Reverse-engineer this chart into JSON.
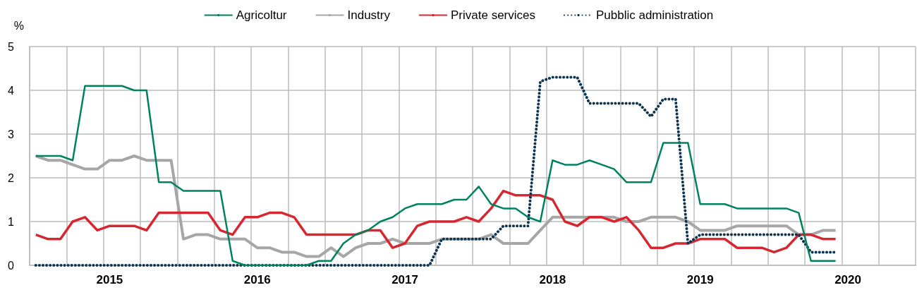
{
  "chart_data": {
    "type": "line",
    "ylabel": "%",
    "categories": [
      null,
      null,
      null,
      null,
      null,
      null,
      "2015",
      null,
      null,
      null,
      null,
      null,
      null,
      null,
      null,
      null,
      null,
      null,
      "2016",
      null,
      null,
      null,
      null,
      null,
      null,
      null,
      null,
      null,
      null,
      null,
      "2017",
      null,
      null,
      null,
      null,
      null,
      null,
      null,
      null,
      null,
      null,
      null,
      "2018",
      null,
      null,
      null,
      null,
      null,
      null,
      null,
      null,
      null,
      null,
      null,
      "2019",
      null,
      null,
      null,
      null,
      null,
      null,
      null,
      null,
      null,
      null,
      null,
      "2020",
      null,
      null,
      null,
      null,
      null
    ],
    "series": [
      {
        "name": "Agricoltur",
        "color": "#00825f",
        "line_style": "solid",
        "values": [
          2.5,
          2.5,
          2.5,
          2.4,
          4.1,
          4.1,
          4.1,
          4.1,
          4.0,
          4.0,
          1.9,
          1.9,
          1.7,
          1.7,
          1.7,
          1.7,
          0.1,
          0,
          0,
          0,
          0,
          0,
          0,
          0.1,
          0.1,
          0.5,
          0.7,
          0.8,
          1.0,
          1.1,
          1.3,
          1.4,
          1.4,
          1.4,
          1.5,
          1.5,
          1.8,
          1.4,
          1.3,
          1.3,
          1.1,
          1.0,
          2.4,
          2.3,
          2.3,
          2.4,
          2.3,
          2.2,
          1.9,
          1.9,
          1.9,
          2.8,
          2.8,
          2.8,
          1.4,
          1.4,
          1.4,
          1.3,
          1.3,
          1.3,
          1.3,
          1.3,
          1.2,
          0.1,
          0.1,
          0.1,
          null,
          null,
          null,
          null,
          null,
          null
        ]
      },
      {
        "name": "Industry",
        "color": "#a6a6a6",
        "line_style": "solid",
        "values": [
          2.5,
          2.4,
          2.4,
          2.3,
          2.2,
          2.2,
          2.4,
          2.4,
          2.5,
          2.4,
          2.4,
          2.4,
          0.6,
          0.7,
          0.7,
          0.6,
          0.6,
          0.6,
          0.4,
          0.4,
          0.3,
          0.3,
          0.2,
          0.2,
          0.4,
          0.2,
          0.4,
          0.5,
          0.5,
          0.6,
          0.5,
          0.5,
          0.5,
          0.6,
          0.6,
          0.6,
          0.6,
          0.7,
          0.5,
          0.5,
          0.5,
          0.8,
          1.1,
          1.1,
          1.1,
          1.1,
          1.1,
          1.1,
          1.0,
          1.0,
          1.1,
          1.1,
          1.1,
          1.0,
          0.8,
          0.8,
          0.8,
          0.9,
          0.9,
          0.9,
          0.9,
          0.9,
          0.7,
          0.7,
          0.8,
          0.8,
          null,
          null,
          null,
          null,
          null,
          null
        ]
      },
      {
        "name": "Private services",
        "color": "#d7262f",
        "line_style": "solid",
        "values": [
          0.7,
          0.6,
          0.6,
          1.0,
          1.1,
          0.8,
          0.9,
          0.9,
          0.9,
          0.8,
          1.2,
          1.2,
          1.2,
          1.2,
          1.2,
          0.8,
          0.7,
          1.1,
          1.1,
          1.2,
          1.2,
          1.1,
          0.7,
          0.7,
          0.7,
          0.7,
          0.7,
          0.8,
          0.8,
          0.4,
          0.5,
          0.9,
          1.0,
          1.0,
          1.0,
          1.1,
          1.0,
          1.3,
          1.7,
          1.6,
          1.6,
          1.6,
          1.5,
          1.0,
          0.9,
          1.1,
          1.1,
          1.0,
          1.1,
          0.8,
          0.4,
          0.4,
          0.5,
          0.5,
          0.6,
          0.6,
          0.6,
          0.4,
          0.4,
          0.4,
          0.3,
          0.4,
          0.7,
          0.7,
          0.6,
          0.6,
          null,
          null,
          null,
          null,
          null,
          null
        ]
      },
      {
        "name": "Pubblic administration",
        "color": "#0b3552",
        "line_style": "dotted",
        "values": [
          0,
          0,
          0,
          0,
          0,
          0,
          0,
          0,
          0,
          0,
          0,
          0,
          0,
          0,
          0,
          0,
          0,
          0,
          0,
          0,
          0,
          0,
          0,
          0,
          0,
          0,
          0,
          0,
          0,
          0,
          0,
          0,
          0,
          0.6,
          0.6,
          0.6,
          0.6,
          0.6,
          0.9,
          0.9,
          0.9,
          4.2,
          4.3,
          4.3,
          4.3,
          3.7,
          3.7,
          3.7,
          3.7,
          3.7,
          3.4,
          3.8,
          3.8,
          0.5,
          0.7,
          0.7,
          0.7,
          0.7,
          0.7,
          0.7,
          0.7,
          0.7,
          0.7,
          0.3,
          0.3,
          0.3,
          null,
          null,
          null,
          null,
          null,
          null
        ]
      }
    ],
    "ylim": [
      0,
      5
    ],
    "yticks": [
      0,
      1,
      2,
      3,
      4,
      5
    ],
    "grid": true,
    "legend": "top",
    "marker": "none"
  }
}
